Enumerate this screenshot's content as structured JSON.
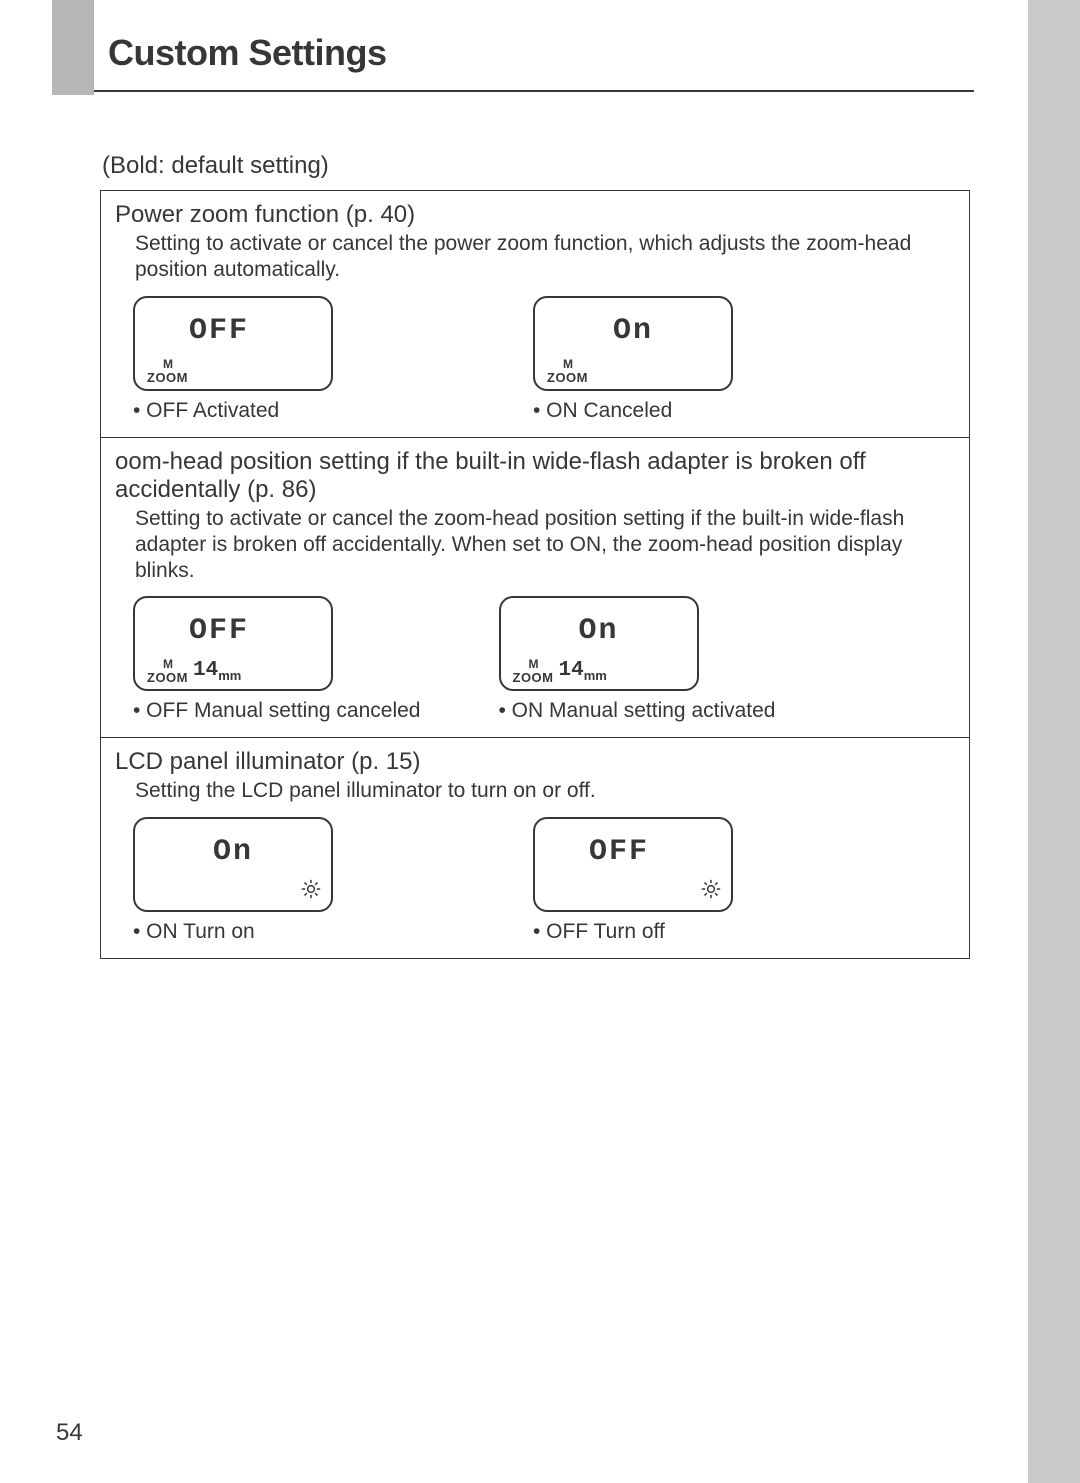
{
  "page_number": "54",
  "header_title": "Custom Settings",
  "subtitle": "(Bold: default setting)",
  "lcd_glyphs": {
    "off": "OFF",
    "on": "On"
  },
  "zoom_indicator": {
    "label": "ZOOM",
    "m": "M",
    "mm_value": "14",
    "mm_unit": "mm"
  },
  "sections": [
    {
      "title": "Power zoom function",
      "page_ref": "(p. 40)",
      "description": "Setting to activate or cancel the power zoom function, which adjusts the zoom-head position automatically.",
      "options": [
        {
          "lcd": "off",
          "show_zoom": true,
          "show_mm": false,
          "show_sun": false,
          "caption_bold": "• OFF",
          "caption_rest": "  Activated"
        },
        {
          "lcd": "on",
          "show_zoom": true,
          "show_mm": false,
          "show_sun": false,
          "caption_bold": "• ON",
          "caption_rest": "  Canceled"
        }
      ]
    },
    {
      "title": "oom-head position setting if the built-in wide-flash adapter is broken off accidentally",
      "page_ref": "(p. 86)",
      "description": "Setting to activate or cancel the zoom-head position setting if the built-in wide-flash adapter is broken off accidentally. When set to ON, the zoom-head position display blinks.",
      "options": [
        {
          "lcd": "off",
          "show_zoom": true,
          "show_mm": true,
          "show_sun": false,
          "caption_bold": "• OFF",
          "caption_rest": "  Manual setting canceled"
        },
        {
          "lcd": "on",
          "show_zoom": true,
          "show_mm": true,
          "show_sun": false,
          "caption_bold": "• ON",
          "caption_rest": "  Manual setting activated"
        }
      ]
    },
    {
      "title": "LCD panel illuminator",
      "page_ref": "(p. 15)",
      "description": "Setting the LCD panel illuminator to turn on or off.",
      "options": [
        {
          "lcd": "on",
          "show_zoom": false,
          "show_mm": false,
          "show_sun": true,
          "caption_bold": "• ON",
          "caption_rest": "  Turn on"
        },
        {
          "lcd": "off",
          "show_zoom": false,
          "show_mm": false,
          "show_sun": true,
          "caption_bold": "• OFF",
          "caption_rest": "  Turn off"
        }
      ]
    }
  ],
  "options_row_gaps": [
    "200px",
    "78px",
    "200px"
  ]
}
